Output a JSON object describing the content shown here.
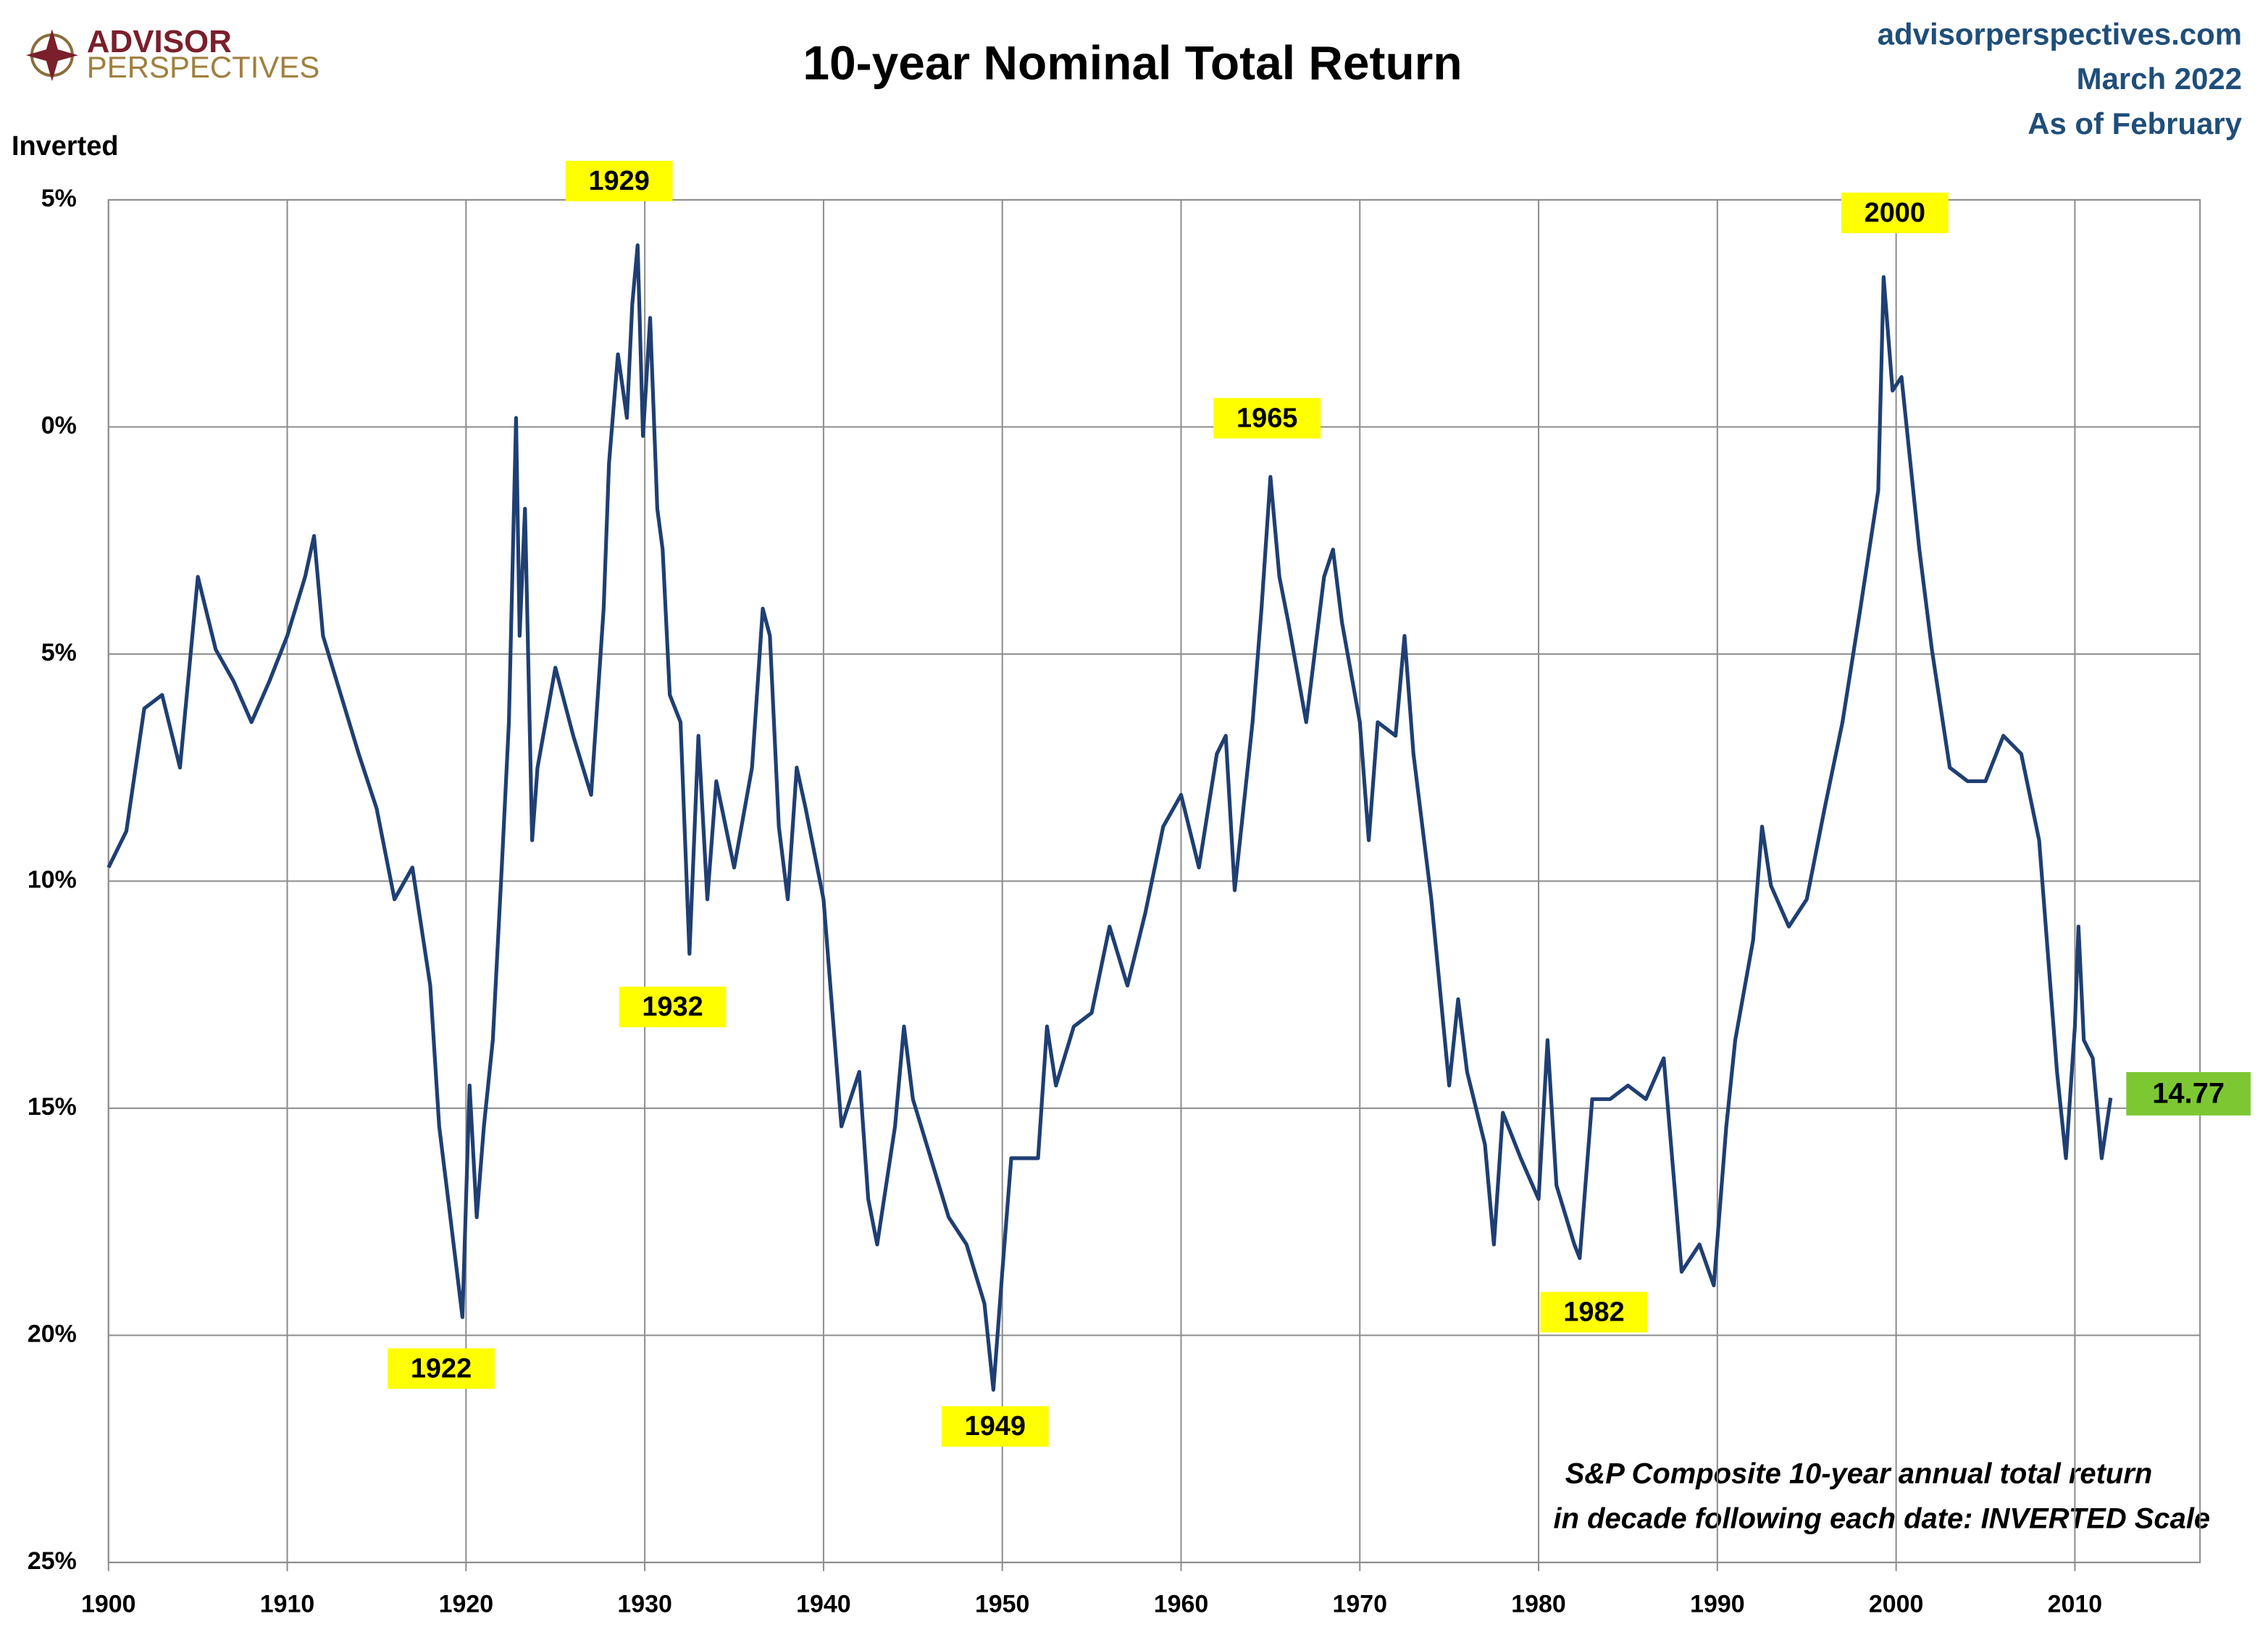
{
  "chart_data": {
    "type": "line",
    "title": "10-year Nominal Total Return",
    "logo": {
      "line1": "ADVISOR",
      "line2": "PERSPECTIVES"
    },
    "source_lines": [
      "advisorperspectives.com",
      "March 2022",
      "As of February"
    ],
    "y_axis_note": "Inverted",
    "footnote": [
      "S&P Composite 10-year annual total return",
      "in decade following each date: INVERTED Scale"
    ],
    "annotations": [
      "1929",
      "1922",
      "1932",
      "1949",
      "1965",
      "1982",
      "2000"
    ],
    "color": "#1f3f73",
    "invert_y": true,
    "grid": true,
    "negative_tick_color": "#ff0000",
    "xlim": [
      1900,
      2017
    ],
    "xticks": [
      1900,
      1910,
      1920,
      1930,
      1940,
      1950,
      1960,
      1970,
      1980,
      1990,
      2000,
      2010
    ],
    "ylim": [
      -5,
      25
    ],
    "yticks": [
      {
        "value": -5,
        "label": "5%"
      },
      {
        "value": 0,
        "label": "0%"
      },
      {
        "value": 5,
        "label": "5%"
      },
      {
        "value": 10,
        "label": "10%"
      },
      {
        "value": 15,
        "label": "15%"
      },
      {
        "value": 20,
        "label": "20%"
      },
      {
        "value": 25,
        "label": "25%"
      }
    ],
    "x": [
      1900,
      1901,
      1902,
      1903,
      1904,
      1905,
      1906,
      1907,
      1908,
      1909,
      1910,
      1911,
      1911.5,
      1912,
      1913,
      1914,
      1915,
      1916,
      1917,
      1918,
      1918.5,
      1919,
      1919.8,
      1920.2,
      1920.6,
      1921,
      1921.5,
      1922,
      1922.4,
      1922.8,
      1923,
      1923.3,
      1923.7,
      1924,
      1925,
      1926,
      1927,
      1927.7,
      1928,
      1928.5,
      1929,
      1929.3,
      1929.6,
      1929.9,
      1930.3,
      1930.7,
      1931,
      1931.4,
      1932,
      1932.5,
      1933,
      1933.5,
      1934,
      1935,
      1936,
      1936.6,
      1937,
      1937.5,
      1938,
      1938.5,
      1939,
      1940,
      1940.5,
      1941,
      1942,
      1942.5,
      1943,
      1944,
      1944.5,
      1945,
      1946,
      1947,
      1948,
      1949,
      1949.5,
      1950,
      1950.5,
      1951,
      1952,
      1952.5,
      1953,
      1954,
      1955,
      1956,
      1957,
      1958,
      1959,
      1960,
      1961,
      1962,
      1962.5,
      1963,
      1964,
      1964.5,
      1965,
      1965.5,
      1966,
      1967,
      1968,
      1968.5,
      1969,
      1970,
      1970.5,
      1971,
      1972,
      1972.5,
      1973,
      1974,
      1975,
      1975.5,
      1976,
      1977,
      1977.5,
      1978,
      1979,
      1980,
      1980.5,
      1981,
      1982,
      1982.3,
      1983,
      1984,
      1985,
      1986,
      1987,
      1987.6,
      1988,
      1989,
      1989.8,
      1990.5,
      1991,
      1992,
      1992.5,
      1993,
      1994,
      1995,
      1996,
      1997,
      1998,
      1999,
      1999.3,
      1999.8,
      2000.3,
      2000.8,
      2001.3,
      2002,
      2003,
      2004,
      2005,
      2006,
      2007,
      2008,
      2009,
      2009.5,
      2010,
      2010.2,
      2010.5,
      2011,
      2011.5,
      2012
    ],
    "values": [
      9.7,
      8.9,
      6.2,
      5.9,
      7.5,
      3.3,
      4.9,
      5.6,
      6.5,
      5.6,
      4.6,
      3.3,
      2.4,
      4.6,
      5.9,
      7.2,
      8.4,
      10.4,
      9.7,
      12.3,
      15.4,
      17,
      19.6,
      14.5,
      17.4,
      15.4,
      13.5,
      9.7,
      6.5,
      -0.2,
      4.6,
      1.8,
      9.1,
      7.5,
      5.3,
      6.8,
      8.1,
      4.0,
      0.8,
      -1.6,
      -0.2,
      -2.7,
      -4.0,
      0.2,
      -2.4,
      1.8,
      2.7,
      5.9,
      6.5,
      11.6,
      6.8,
      10.4,
      7.8,
      9.7,
      7.5,
      4.0,
      4.6,
      8.8,
      10.4,
      7.5,
      8.4,
      10.4,
      12.9,
      15.4,
      14.2,
      17,
      18,
      15.4,
      13.2,
      14.8,
      16.1,
      17.4,
      18,
      19.3,
      21.2,
      18.6,
      16.1,
      16.1,
      16.1,
      13.2,
      14.5,
      13.2,
      12.9,
      11,
      12.3,
      10.7,
      8.8,
      8.1,
      9.7,
      7.2,
      6.8,
      10.2,
      6.5,
      4.0,
      1.1,
      3.3,
      4.3,
      6.5,
      3.3,
      2.7,
      4.3,
      6.5,
      9.1,
      6.5,
      6.8,
      4.6,
      7.2,
      10.4,
      14.5,
      12.6,
      14.2,
      15.8,
      18,
      15.1,
      16.1,
      17,
      13.5,
      16.7,
      18,
      18.3,
      14.8,
      14.8,
      14.5,
      14.8,
      13.9,
      16.7,
      18.6,
      18,
      18.9,
      15.4,
      13.5,
      11.3,
      8.8,
      10.1,
      11,
      10.4,
      8.4,
      6.5,
      4.0,
      1.4,
      -3.3,
      -0.8,
      -1.1,
      0.8,
      2.7,
      4.9,
      7.5,
      7.8,
      7.8,
      6.8,
      7.2,
      9.1,
      14.2,
      16.1,
      13.2,
      11,
      13.5,
      13.9,
      16.1,
      14.77
    ]
  }
}
